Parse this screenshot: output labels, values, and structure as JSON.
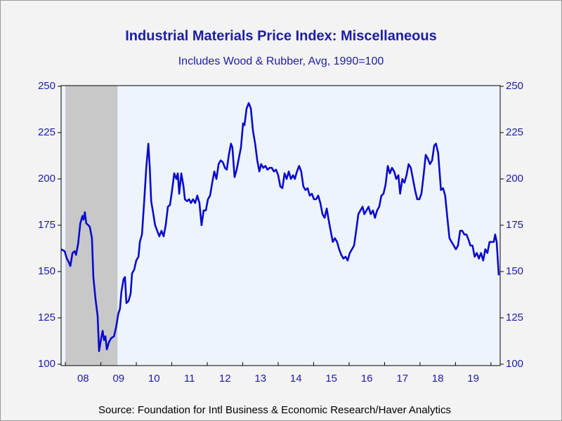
{
  "chart_data": {
    "type": "line",
    "title": "Industrial Materials Price Index: Miscellaneous",
    "subtitle": "Includes Wood & Rubber, Avg, 1990=100",
    "source": "Source:  Foundation for Intl Business & Economic Research/Haver Analytics",
    "xlim": [
      2007.88,
      2020.26
    ],
    "xticks": [
      2008,
      2009,
      2010,
      2011,
      2012,
      2013,
      2014,
      2015,
      2016,
      2017,
      2018,
      2019,
      2020
    ],
    "xtick_labels": [
      {
        "value": 2008.5,
        "label": "08"
      },
      {
        "value": 2009.5,
        "label": "09"
      },
      {
        "value": 2010.5,
        "label": "10"
      },
      {
        "value": 2011.5,
        "label": "11"
      },
      {
        "value": 2012.5,
        "label": "12"
      },
      {
        "value": 2013.5,
        "label": "13"
      },
      {
        "value": 2014.5,
        "label": "14"
      },
      {
        "value": 2015.5,
        "label": "15"
      },
      {
        "value": 2016.5,
        "label": "16"
      },
      {
        "value": 2017.5,
        "label": "17"
      },
      {
        "value": 2018.5,
        "label": "18"
      },
      {
        "value": 2019.5,
        "label": "19"
      }
    ],
    "ylim": [
      100,
      250
    ],
    "yticks": [
      100,
      125,
      150,
      175,
      200,
      225,
      250
    ],
    "y2lim": [
      100,
      250
    ],
    "y2ticks": [
      100,
      125,
      150,
      175,
      200,
      225,
      250
    ],
    "shaded_range": [
      2008.0,
      2009.47
    ],
    "shade_color": "#c8c8c8",
    "series": [
      {
        "color": "#0a0acc",
        "x": [
          2007.88,
          2007.98,
          2008.04,
          2008.1,
          2008.14,
          2008.2,
          2008.26,
          2008.3,
          2008.36,
          2008.42,
          2008.48,
          2008.51,
          2008.55,
          2008.59,
          2008.65,
          2008.69,
          2008.75,
          2008.79,
          2008.85,
          2008.91,
          2008.95,
          2009.01,
          2009.05,
          2009.09,
          2009.13,
          2009.17,
          2009.23,
          2009.29,
          2009.37,
          2009.43,
          2009.49,
          2009.54,
          2009.58,
          2009.64,
          2009.68,
          2009.72,
          2009.78,
          2009.84,
          2009.88,
          2009.94,
          2010.0,
          2010.06,
          2010.1,
          2010.16,
          2010.22,
          2010.28,
          2010.34,
          2010.38,
          2010.42,
          2010.48,
          2010.53,
          2010.59,
          2010.65,
          2010.71,
          2010.77,
          2010.83,
          2010.89,
          2010.95,
          2011.01,
          2011.07,
          2011.13,
          2011.17,
          2011.21,
          2011.27,
          2011.33,
          2011.37,
          2011.43,
          2011.49,
          2011.54,
          2011.6,
          2011.66,
          2011.72,
          2011.78,
          2011.84,
          2011.9,
          2011.96,
          2012.02,
          2012.08,
          2012.14,
          2012.2,
          2012.26,
          2012.32,
          2012.38,
          2012.44,
          2012.5,
          2012.55,
          2012.61,
          2012.67,
          2012.71,
          2012.77,
          2012.83,
          2012.89,
          2012.95,
          2013.01,
          2013.05,
          2013.11,
          2013.17,
          2013.23,
          2013.29,
          2013.35,
          2013.41,
          2013.47,
          2013.52,
          2013.58,
          2013.64,
          2013.7,
          2013.76,
          2013.82,
          2013.88,
          2013.94,
          2014.0,
          2014.06,
          2014.12,
          2014.18,
          2014.24,
          2014.3,
          2014.36,
          2014.42,
          2014.47,
          2014.53,
          2014.59,
          2014.65,
          2014.71,
          2014.77,
          2014.83,
          2014.89,
          2014.95,
          2015.01,
          2015.07,
          2015.13,
          2015.19,
          2015.25,
          2015.31,
          2015.37,
          2015.43,
          2015.48,
          2015.54,
          2015.6,
          2015.66,
          2015.72,
          2015.78,
          2015.84,
          2015.9,
          2015.96,
          2016.02,
          2016.08,
          2016.14,
          2016.2,
          2016.26,
          2016.32,
          2016.38,
          2016.43,
          2016.49,
          2016.55,
          2016.61,
          2016.67,
          2016.73,
          2016.79,
          2016.85,
          2016.91,
          2016.97,
          2017.03,
          2017.09,
          2017.15,
          2017.21,
          2017.27,
          2017.33,
          2017.39,
          2017.44,
          2017.5,
          2017.56,
          2017.62,
          2017.68,
          2017.74,
          2017.8,
          2017.86,
          2017.92,
          2017.98,
          2018.04,
          2018.1,
          2018.16,
          2018.22,
          2018.28,
          2018.34,
          2018.4,
          2018.45,
          2018.51,
          2018.55,
          2018.59,
          2018.65,
          2018.71,
          2018.77,
          2018.83,
          2018.89,
          2018.95,
          2019.01,
          2019.07,
          2019.13,
          2019.19,
          2019.25,
          2019.31,
          2019.37,
          2019.42,
          2019.48,
          2019.54,
          2019.6,
          2019.66,
          2019.72,
          2019.78,
          2019.84,
          2019.9,
          2019.96,
          2020.02,
          2020.08,
          2020.12,
          2020.16,
          2020.22
        ],
        "values": [
          162,
          161,
          157,
          155,
          153,
          160,
          161,
          159,
          165,
          176,
          180,
          178,
          182,
          176,
          175,
          174,
          168,
          147,
          135,
          126,
          107,
          114,
          118,
          113,
          115,
          108,
          112,
          114,
          115,
          120,
          127,
          130,
          139,
          146,
          147,
          133,
          134,
          138,
          149,
          151,
          156,
          158,
          166,
          170,
          187,
          206,
          219,
          206,
          188,
          181,
          175,
          172,
          169,
          172,
          169,
          175,
          185,
          186,
          194,
          203,
          200,
          203,
          192,
          203,
          196,
          189,
          188,
          189,
          187,
          189,
          187,
          191,
          187,
          175,
          183,
          183,
          189,
          191,
          198,
          204,
          200,
          208,
          210,
          209,
          206,
          205,
          213,
          219,
          217,
          201,
          205,
          211,
          217,
          230,
          229,
          238,
          241,
          238,
          226,
          219,
          210,
          204,
          208,
          206,
          207,
          205,
          206,
          206,
          204,
          205,
          202,
          196,
          195,
          203,
          200,
          204,
          200,
          202,
          200,
          204,
          207,
          204,
          196,
          194,
          195,
          191,
          192,
          189,
          189,
          191,
          187,
          181,
          179,
          184,
          177,
          172,
          166,
          168,
          166,
          162,
          159,
          157,
          158,
          156,
          160,
          162,
          164,
          172,
          181,
          183,
          185,
          181,
          183,
          185,
          181,
          183,
          179,
          183,
          185,
          191,
          192,
          197,
          207,
          203,
          206,
          204,
          200,
          202,
          192,
          200,
          198,
          202,
          208,
          206,
          200,
          194,
          189,
          189,
          192,
          202,
          213,
          211,
          208,
          210,
          218,
          219,
          214,
          204,
          194,
          195,
          191,
          179,
          168,
          166,
          164,
          162,
          164,
          172,
          172,
          170,
          170,
          167,
          164,
          164,
          158,
          160,
          157,
          160,
          156,
          162,
          160,
          166,
          166,
          166,
          170,
          166,
          148
        ]
      }
    ]
  }
}
